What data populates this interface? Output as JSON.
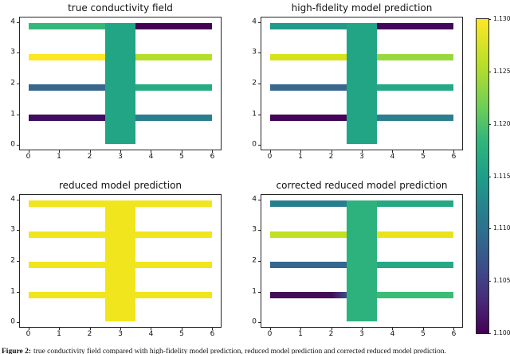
{
  "figure": {
    "caption_prefix": "Figure 2:",
    "caption_text": "true conductivity field compared with high-fidelity model prediction, reduced model prediction and corrected reduced model prediction."
  },
  "colorbar": {
    "colormap": "viridis",
    "vmin": 1.1,
    "vmax": 1.13,
    "tick_labels": [
      "1.130",
      "1.125",
      "1.120",
      "1.115",
      "1.110",
      "1.105",
      "1.100"
    ],
    "tick_values": [
      1.13,
      1.125,
      1.12,
      1.115,
      1.11,
      1.105,
      1.1
    ]
  },
  "chart_data": [
    {
      "type": "heatmap",
      "title": "true conductivity field",
      "xlabel": "",
      "ylabel": "",
      "xlim": [
        -0.3,
        6.3
      ],
      "ylim": [
        -0.18,
        4.18
      ],
      "xticks": [
        0,
        1,
        2,
        3,
        4,
        5,
        6
      ],
      "yticks": [
        0,
        1,
        2,
        3,
        4
      ],
      "colormap": "viridis",
      "vmin": 1.1,
      "vmax": 1.13,
      "regions": [
        {
          "name": "vertical-channel",
          "x": [
            2.5,
            3.5
          ],
          "y": [
            0.0,
            4.0
          ],
          "color": "#21a585",
          "value": 1.118
        },
        {
          "name": "branch-top-left",
          "x": [
            0.0,
            2.5
          ],
          "y": [
            3.79,
            4.0
          ],
          "color": "#35b779",
          "value": 1.121
        },
        {
          "name": "branch-top-right",
          "x": [
            3.5,
            6.0
          ],
          "y": [
            3.79,
            4.0
          ],
          "color": "#440256",
          "value": 1.1
        },
        {
          "name": "branch-upper-left",
          "x": [
            0.0,
            2.5
          ],
          "y": [
            2.76,
            2.97
          ],
          "color": "#fde725",
          "value": 1.13
        },
        {
          "name": "branch-upper-right",
          "x": [
            3.5,
            6.0
          ],
          "y": [
            2.76,
            2.97
          ],
          "color": "#b5de2b",
          "value": 1.126
        },
        {
          "name": "branch-lower-left",
          "x": [
            0.0,
            2.5
          ],
          "y": [
            1.77,
            1.98
          ],
          "color": "#38678d",
          "value": 1.108
        },
        {
          "name": "branch-lower-right",
          "x": [
            3.5,
            6.0
          ],
          "y": [
            1.77,
            1.98
          ],
          "color": "#27ab82",
          "value": 1.119
        },
        {
          "name": "branch-bottom-left",
          "x": [
            0.0,
            2.5
          ],
          "y": [
            0.77,
            0.98
          ],
          "color": "#3d0e62",
          "value": 1.101
        },
        {
          "name": "branch-bottom-right",
          "x": [
            3.5,
            6.0
          ],
          "y": [
            0.77,
            0.98
          ],
          "color": "#2a7f8e",
          "value": 1.113
        }
      ]
    },
    {
      "type": "heatmap",
      "title": "high-fidelity model prediction",
      "xlabel": "",
      "ylabel": "",
      "xlim": [
        -0.3,
        6.3
      ],
      "ylim": [
        -0.18,
        4.18
      ],
      "xticks": [
        0,
        1,
        2,
        3,
        4,
        5,
        6
      ],
      "yticks": [
        0,
        1,
        2,
        3,
        4
      ],
      "colormap": "viridis",
      "vmin": 1.1,
      "vmax": 1.13,
      "regions": [
        {
          "name": "vertical-channel",
          "x": [
            2.5,
            3.5
          ],
          "y": [
            0.0,
            4.0
          ],
          "color": "#21a585",
          "value": 1.118
        },
        {
          "name": "branch-top-left",
          "x": [
            0.0,
            2.5
          ],
          "y": [
            3.79,
            4.0
          ],
          "color": "#219a89",
          "value": 1.117
        },
        {
          "name": "branch-top-right",
          "x": [
            3.5,
            6.0
          ],
          "y": [
            3.79,
            4.0
          ],
          "color": "#45075b",
          "value": 1.1
        },
        {
          "name": "branch-upper-left",
          "x": [
            0.0,
            2.5
          ],
          "y": [
            2.76,
            2.97
          ],
          "color": "#d6e21b",
          "value": 1.128
        },
        {
          "name": "branch-upper-right",
          "x": [
            3.5,
            6.0
          ],
          "y": [
            2.76,
            2.97
          ],
          "color": "#98d83e",
          "value": 1.123
        },
        {
          "name": "branch-lower-left",
          "x": [
            0.0,
            2.5
          ],
          "y": [
            1.77,
            1.98
          ],
          "color": "#39688e",
          "value": 1.108
        },
        {
          "name": "branch-lower-right",
          "x": [
            3.5,
            6.0
          ],
          "y": [
            1.77,
            1.98
          ],
          "color": "#24a885",
          "value": 1.119
        },
        {
          "name": "branch-bottom-left",
          "x": [
            0.0,
            2.5
          ],
          "y": [
            0.77,
            0.98
          ],
          "color": "#440559",
          "value": 1.1
        },
        {
          "name": "branch-bottom-right",
          "x": [
            3.5,
            6.0
          ],
          "y": [
            0.77,
            0.98
          ],
          "color": "#2d7f8e",
          "value": 1.113
        }
      ]
    },
    {
      "type": "heatmap",
      "title": "reduced model prediction",
      "xlabel": "",
      "ylabel": "",
      "xlim": [
        -0.3,
        6.3
      ],
      "ylim": [
        -0.18,
        4.18
      ],
      "xticks": [
        0,
        1,
        2,
        3,
        4,
        5,
        6
      ],
      "yticks": [
        0,
        1,
        2,
        3,
        4
      ],
      "colormap": "viridis",
      "vmin": 1.1,
      "vmax": 1.13,
      "regions": [
        {
          "name": "vertical-channel",
          "x": [
            2.5,
            3.5
          ],
          "y": [
            0.0,
            4.0
          ],
          "color": "#f1e51d",
          "value": 1.129
        },
        {
          "name": "branch-top-left",
          "x": [
            0.0,
            2.5
          ],
          "y": [
            3.79,
            4.0
          ],
          "color": "#f1e51d",
          "value": 1.129
        },
        {
          "name": "branch-top-right",
          "x": [
            3.5,
            6.0
          ],
          "y": [
            3.79,
            4.0
          ],
          "color": "#f1e51d",
          "value": 1.129
        },
        {
          "name": "branch-upper-left",
          "x": [
            0.0,
            2.5
          ],
          "y": [
            2.76,
            2.97
          ],
          "color": "#f1e51d",
          "value": 1.129
        },
        {
          "name": "branch-upper-right",
          "x": [
            3.5,
            6.0
          ],
          "y": [
            2.76,
            2.97
          ],
          "color": "#f1e51d",
          "value": 1.129
        },
        {
          "name": "branch-lower-left",
          "x": [
            0.0,
            2.5
          ],
          "y": [
            1.77,
            1.98
          ],
          "color": "#f1e51d",
          "value": 1.129
        },
        {
          "name": "branch-lower-right",
          "x": [
            3.5,
            6.0
          ],
          "y": [
            1.77,
            1.98
          ],
          "color": "#f1e51d",
          "value": 1.129
        },
        {
          "name": "branch-bottom-left",
          "x": [
            0.0,
            2.5
          ],
          "y": [
            0.77,
            0.98
          ],
          "color": "#f1e51d",
          "value": 1.129
        },
        {
          "name": "branch-bottom-right",
          "x": [
            3.5,
            6.0
          ],
          "y": [
            0.77,
            0.98
          ],
          "color": "#f1e51d",
          "value": 1.129
        }
      ]
    },
    {
      "type": "heatmap",
      "title": "corrected reduced model prediction",
      "xlabel": "",
      "ylabel": "",
      "xlim": [
        -0.3,
        6.3
      ],
      "ylim": [
        -0.18,
        4.18
      ],
      "xticks": [
        0,
        1,
        2,
        3,
        4,
        5,
        6
      ],
      "yticks": [
        0,
        1,
        2,
        3,
        4
      ],
      "colormap": "viridis",
      "vmin": 1.1,
      "vmax": 1.13,
      "regions": [
        {
          "name": "vertical-channel",
          "x": [
            2.5,
            3.5
          ],
          "y": [
            0.0,
            4.0
          ],
          "color": "#2db17d",
          "value": 1.12
        },
        {
          "name": "branch-top-left",
          "x": [
            0.0,
            2.5
          ],
          "y": [
            3.79,
            4.0
          ],
          "color": "#287e8e",
          "value": 1.113
        },
        {
          "name": "branch-top-right",
          "x": [
            3.5,
            6.0
          ],
          "y": [
            3.79,
            4.0
          ],
          "color": "#26a884",
          "value": 1.119
        },
        {
          "name": "branch-upper-left",
          "x": [
            0.0,
            2.5
          ],
          "y": [
            2.76,
            2.97
          ],
          "color": "#c2e022",
          "value": 1.127
        },
        {
          "name": "branch-upper-right",
          "x": [
            3.5,
            6.0
          ],
          "y": [
            2.76,
            2.97
          ],
          "color": "#e9e41a",
          "value": 1.129
        },
        {
          "name": "branch-lower-left",
          "x": [
            0.0,
            2.5
          ],
          "y": [
            1.77,
            1.98
          ],
          "color": "#33678d",
          "value": 1.108
        },
        {
          "name": "branch-lower-right",
          "x": [
            3.5,
            6.0
          ],
          "y": [
            1.77,
            1.98
          ],
          "color": "#26a885",
          "value": 1.119
        },
        {
          "name": "branch-bottom-left",
          "x": [
            0.0,
            2.5
          ],
          "y": [
            0.77,
            0.98
          ],
          "color": "#440b57",
          "color2": "#3f4c8a",
          "value": 1.101
        },
        {
          "name": "branch-bottom-right",
          "x": [
            3.5,
            6.0
          ],
          "y": [
            0.77,
            0.98
          ],
          "color": "#3abc74",
          "value": 1.122
        }
      ]
    }
  ]
}
